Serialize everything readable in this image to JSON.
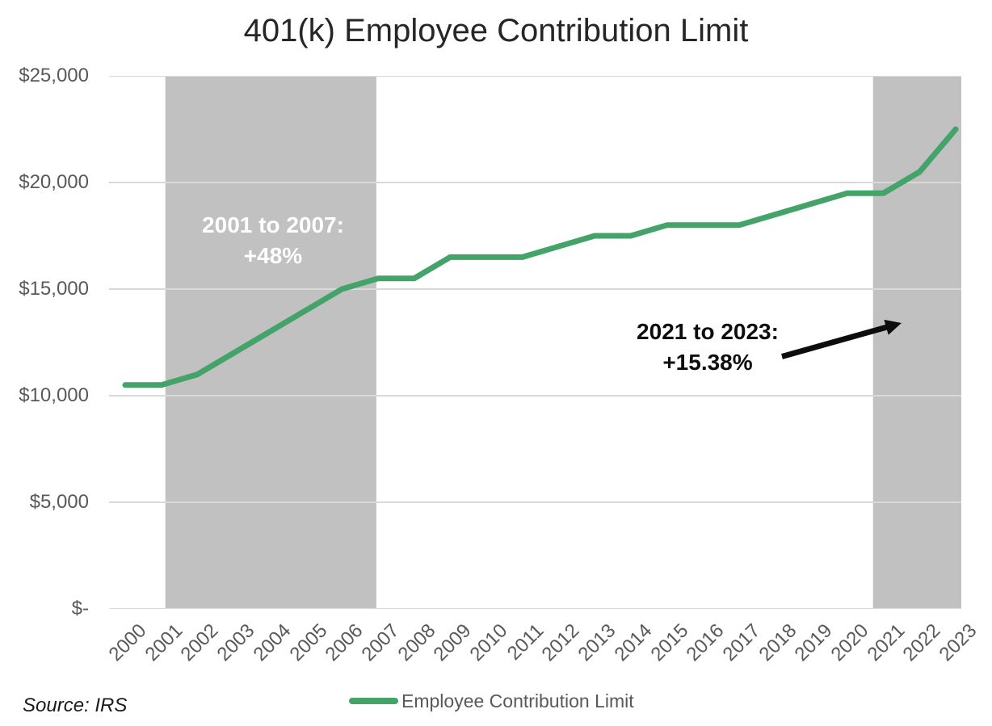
{
  "title": "401(k) Employee Contribution Limit",
  "source_note": "Source: IRS",
  "legend": {
    "label": "Employee Contribution Limit"
  },
  "annotations": [
    {
      "id": "band-2001-2007",
      "line1": "2001 to 2007:",
      "line2": "+48%",
      "text_color": "#ffffff"
    },
    {
      "id": "band-2021-2023",
      "line1": "2021 to 2023:",
      "line2": "+15.38%",
      "text_color": "#0d0d0d"
    }
  ],
  "chart_data": {
    "type": "line",
    "title": "401(k) Employee Contribution Limit",
    "x": [
      2000,
      2001,
      2002,
      2003,
      2004,
      2005,
      2006,
      2007,
      2008,
      2009,
      2010,
      2011,
      2012,
      2013,
      2014,
      2015,
      2016,
      2017,
      2018,
      2019,
      2020,
      2021,
      2022,
      2023
    ],
    "series": [
      {
        "name": "Employee Contribution Limit",
        "color": "#43a369",
        "values": [
          10500,
          10500,
          11000,
          12000,
          13000,
          14000,
          15000,
          15500,
          15500,
          16500,
          16500,
          16500,
          17000,
          17500,
          17500,
          18000,
          18000,
          18000,
          18500,
          19000,
          19500,
          19500,
          20500,
          22500
        ]
      }
    ],
    "xlabel": "",
    "ylabel": "",
    "ylim": [
      0,
      25000
    ],
    "ytick_step": 5000,
    "ytick_labels": [
      "$-",
      "$5,000",
      "$10,000",
      "$15,000",
      "$20,000",
      "$25,000"
    ],
    "grid": "horizontal",
    "legend_position": "bottom",
    "highlight_bands": [
      {
        "from": 2001,
        "to": 2007,
        "label": "2001 to 2007: +48%"
      },
      {
        "from": 2021,
        "to": 2023,
        "label": "2021 to 2023: +15.38%"
      }
    ],
    "colors": {
      "line": "#43a369",
      "band": "#c1c1c1",
      "gridline": "#d9d9d9",
      "axis_text": "#595959",
      "title_text": "#262626",
      "annotation_arrow": "#0d0d0d"
    }
  }
}
